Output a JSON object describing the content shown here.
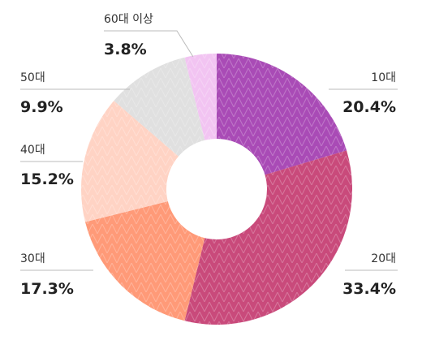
{
  "chart_data": {
    "type": "donut",
    "categories": [
      "10대",
      "20대",
      "30대",
      "40대",
      "50대",
      "60대 이상"
    ],
    "values": [
      20.4,
      33.4,
      17.3,
      15.2,
      9.9,
      3.8
    ],
    "value_labels": [
      "20.4%",
      "33.4%",
      "17.3%",
      "15.2%",
      "9.9%",
      "3.8%"
    ],
    "colors": [
      "#a94bb6",
      "#c94a7b",
      "#ff9a78",
      "#ffd3c4",
      "#e0e0e0",
      "#f2c4f2"
    ]
  }
}
